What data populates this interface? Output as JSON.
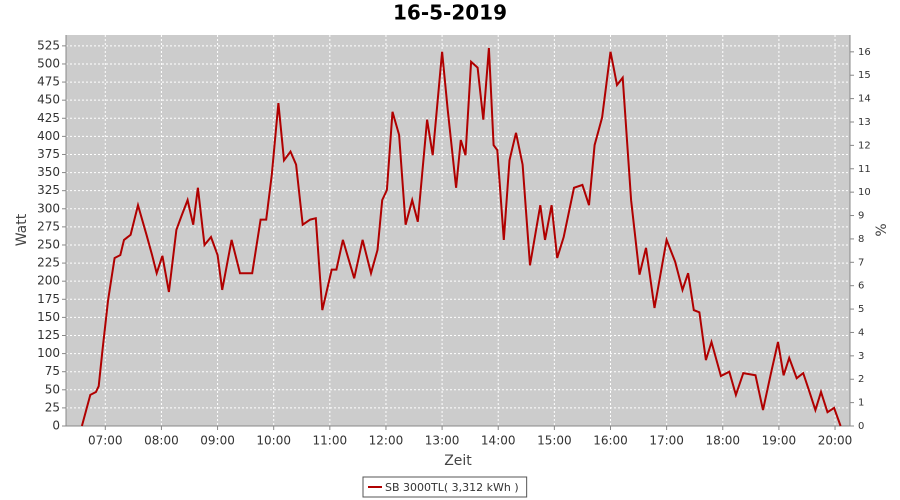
{
  "chart_data": {
    "type": "line",
    "title": "16-5-2019",
    "x_label": "Zeit",
    "y_label": "Watt",
    "y2_label": "%",
    "x": [
      "06:35",
      "06:44",
      "06:50",
      "06:53",
      "06:57",
      "07:03",
      "07:10",
      "07:16",
      "07:20",
      "07:27",
      "07:35",
      "07:44",
      "07:50",
      "07:55",
      "08:01",
      "08:08",
      "08:16",
      "08:22",
      "08:28",
      "08:34",
      "08:39",
      "08:46",
      "08:53",
      "09:00",
      "09:05",
      "09:15",
      "09:24",
      "09:37",
      "09:46",
      "09:52",
      "09:58",
      "10:05",
      "10:11",
      "10:18",
      "10:24",
      "10:31",
      "10:39",
      "10:45",
      "10:52",
      "11:02",
      "11:07",
      "11:14",
      "11:26",
      "11:35",
      "11:44",
      "11:51",
      "11:56",
      "12:01",
      "12:07",
      "12:14",
      "12:21",
      "12:28",
      "12:34",
      "12:44",
      "12:50",
      "13:00",
      "13:06",
      "13:15",
      "13:20",
      "13:25",
      "13:31",
      "13:38",
      "13:44",
      "13:50",
      "13:55",
      "13:59",
      "14:06",
      "14:12",
      "14:19",
      "14:26",
      "14:34",
      "14:45",
      "14:50",
      "14:57",
      "15:03",
      "15:10",
      "15:21",
      "15:30",
      "15:37",
      "15:43",
      "15:51",
      "16:00",
      "16:07",
      "16:13",
      "16:22",
      "16:31",
      "16:38",
      "16:47",
      "17:00",
      "17:09",
      "17:17",
      "17:23",
      "17:29",
      "17:35",
      "17:42",
      "17:48",
      "17:58",
      "18:07",
      "18:14",
      "18:22",
      "18:35",
      "18:43",
      "18:51",
      "18:59",
      "19:05",
      "19:11",
      "19:19",
      "19:26",
      "19:32",
      "19:39",
      "19:45",
      "19:52",
      "19:59",
      "20:06"
    ],
    "series": [
      {
        "name": "SB 3000TL( 3,312 kWh )",
        "color": "#b00000",
        "values": [
          0,
          43,
          47,
          55,
          105,
          174,
          232,
          236,
          257,
          264,
          305,
          264,
          236,
          211,
          235,
          185,
          271,
          292,
          312,
          278,
          329,
          250,
          261,
          236,
          188,
          257,
          211,
          211,
          285,
          285,
          347,
          446,
          367,
          379,
          361,
          278,
          285,
          287,
          160,
          216,
          216,
          257,
          204,
          257,
          211,
          243,
          312,
          326,
          434,
          402,
          278,
          312,
          282,
          423,
          374,
          517,
          437,
          329,
          395,
          374,
          503,
          495,
          423,
          522,
          388,
          381,
          257,
          367,
          405,
          361,
          222,
          305,
          257,
          305,
          232,
          261,
          329,
          333,
          305,
          388,
          426,
          517,
          471,
          481,
          312,
          209,
          246,
          163,
          257,
          227,
          188,
          211,
          160,
          157,
          91,
          116,
          69,
          75,
          43,
          73,
          70,
          22,
          70,
          116,
          70,
          94,
          66,
          73,
          50,
          22,
          47,
          19,
          25,
          0
        ]
      }
    ],
    "xlim": [
      "06:18",
      "20:16"
    ],
    "xticks": [
      "07:00",
      "08:00",
      "09:00",
      "10:00",
      "11:00",
      "12:00",
      "13:00",
      "14:00",
      "15:00",
      "16:00",
      "17:00",
      "18:00",
      "19:00",
      "20:00"
    ],
    "ylim": [
      0,
      540
    ],
    "yticks": [
      0,
      25,
      50,
      75,
      100,
      125,
      150,
      175,
      200,
      225,
      250,
      275,
      300,
      325,
      350,
      375,
      400,
      425,
      450,
      475,
      500,
      525
    ],
    "y2lim": [
      0,
      16.72
    ],
    "y2ticks": [
      0,
      1,
      2,
      3,
      4,
      5,
      6,
      7,
      8,
      9,
      10,
      11,
      12,
      13,
      14,
      15,
      16
    ],
    "grid": true,
    "background": "#cccccc",
    "legend": "bottom"
  }
}
